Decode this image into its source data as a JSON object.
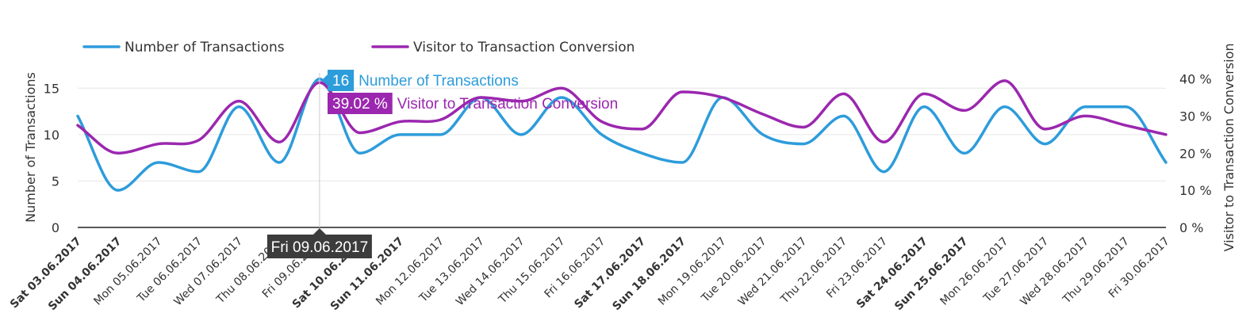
{
  "chart_data": {
    "type": "line",
    "curve": "smooth",
    "categories": [
      "Sat 03.06.2017",
      "Sun 04.06.2017",
      "Mon 05.06.2017",
      "Tue 06.06.2017",
      "Wed 07.06.2017",
      "Thu 08.06.2017",
      "Fri 09.06.2017",
      "Sat 10.06.2017",
      "Sun 11.06.2017",
      "Mon 12.06.2017",
      "Tue 13.06.2017",
      "Wed 14.06.2017",
      "Thu 15.06.2017",
      "Fri 16.06.2017",
      "Sat 17.06.2017",
      "Sun 18.06.2017",
      "Mon 19.06.2017",
      "Tue 20.06.2017",
      "Wed 21.06.2017",
      "Thu 22.06.2017",
      "Fri 23.06.2017",
      "Sat 24.06.2017",
      "Sun 25.06.2017",
      "Mon 26.06.2017",
      "Tue 27.06.2017",
      "Wed 28.06.2017",
      "Thu 29.06.2017",
      "Fri 30.06.2017"
    ],
    "weekend_categories": [
      "Sat 03.06.2017",
      "Sun 04.06.2017",
      "Sat 10.06.2017",
      "Sun 11.06.2017",
      "Sat 17.06.2017",
      "Sun 18.06.2017",
      "Sat 24.06.2017",
      "Sun 25.06.2017"
    ],
    "series": [
      {
        "name": "Number of Transactions",
        "axis": "left",
        "color": "#2d9cdb",
        "values": [
          12,
          4,
          7,
          6,
          13,
          7,
          16,
          8,
          10,
          10,
          14,
          10,
          14,
          10,
          8,
          7,
          14,
          10,
          9,
          12,
          6,
          13,
          8,
          13,
          9,
          13,
          13,
          7
        ]
      },
      {
        "name": "Visitor to Transaction Conversion",
        "axis": "right",
        "color": "#9b27af",
        "values": [
          27.5,
          20,
          22.5,
          23.5,
          34,
          23,
          39.02,
          25.5,
          28.5,
          29,
          35,
          34,
          37.5,
          28.5,
          26.5,
          36.5,
          35,
          30.5,
          27,
          36,
          23,
          36,
          31.5,
          39.5,
          26.5,
          30,
          27.5,
          25
        ]
      }
    ],
    "y_left": {
      "label": "Number of Transactions",
      "min": 0,
      "max": 17.5,
      "ticks": [
        0,
        5,
        10,
        15
      ]
    },
    "y_right": {
      "label": "Visitor to Transaction Conversion",
      "min": 0,
      "max": 43.75,
      "ticks": [
        0,
        10,
        20,
        30,
        40
      ],
      "tick_labels": [
        "0 %",
        "10 %",
        "20 %",
        "30 %",
        "40 %"
      ]
    },
    "grid": true,
    "legend": "top-left",
    "tooltip": {
      "category_index": 6,
      "date_label": "Fri 09.06.2017",
      "rows": [
        {
          "value": "16",
          "label": "Number of Transactions",
          "color": "#2d9cdb"
        },
        {
          "value": "39.02 %",
          "label": "Visitor to Transaction Conversion",
          "color": "#9b27af"
        }
      ]
    }
  }
}
